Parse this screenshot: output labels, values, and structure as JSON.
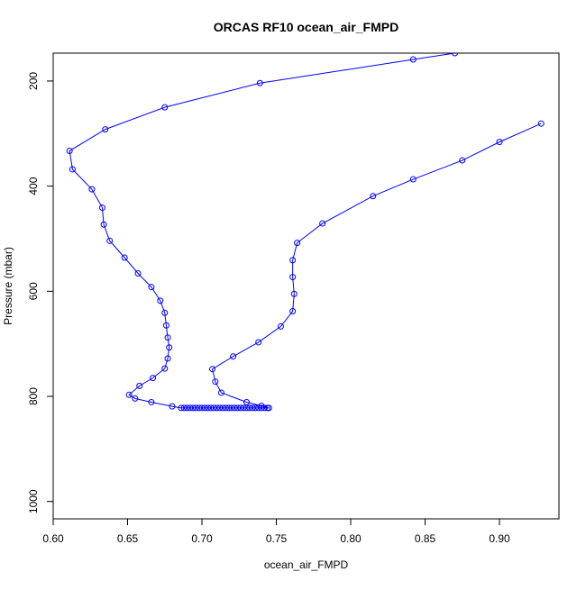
{
  "chart_data": {
    "type": "line",
    "title": "ORCAS RF10 ocean_air_FMPD",
    "xlabel": "ocean_air_FMPD",
    "ylabel": "Pressure (mbar)",
    "xlim": [
      0.6,
      0.94
    ],
    "ylim": [
      1033,
      147
    ],
    "y_reversed": true,
    "grid": false,
    "legend": "none",
    "x_ticks": [
      {
        "value": 0.6,
        "label": "0.60"
      },
      {
        "value": 0.65,
        "label": "0.65"
      },
      {
        "value": 0.7,
        "label": "0.70"
      },
      {
        "value": 0.75,
        "label": "0.75"
      },
      {
        "value": 0.8,
        "label": "0.80"
      },
      {
        "value": 0.85,
        "label": "0.85"
      },
      {
        "value": 0.9,
        "label": "0.90"
      }
    ],
    "y_ticks": [
      {
        "value": 200,
        "label": "200"
      },
      {
        "value": 400,
        "label": "400"
      },
      {
        "value": 600,
        "label": "600"
      },
      {
        "value": 800,
        "label": "800"
      },
      {
        "value": 1000,
        "label": "1000"
      }
    ],
    "series": [
      {
        "color": "#0000ff",
        "marker": "open-circle",
        "points": [
          [
            0.87,
            147
          ],
          [
            0.842,
            159
          ],
          [
            0.739,
            204
          ],
          [
            0.675,
            250
          ],
          [
            0.635,
            292
          ],
          [
            0.611,
            333
          ],
          [
            0.613,
            368
          ],
          [
            0.626,
            406
          ],
          [
            0.633,
            441
          ],
          [
            0.634,
            473
          ],
          [
            0.638,
            504
          ],
          [
            0.648,
            536
          ],
          [
            0.657,
            566
          ],
          [
            0.666,
            592
          ],
          [
            0.672,
            618
          ],
          [
            0.675,
            641
          ],
          [
            0.676,
            665
          ],
          [
            0.677,
            688
          ],
          [
            0.678,
            707
          ],
          [
            0.677,
            728
          ],
          [
            0.675,
            747
          ],
          [
            0.667,
            765
          ],
          [
            0.658,
            780
          ],
          [
            0.651,
            797
          ],
          [
            0.655,
            804
          ],
          [
            0.666,
            811
          ],
          [
            0.68,
            819
          ],
          [
            0.686,
            822
          ],
          [
            0.688,
            822
          ],
          [
            0.69,
            822
          ],
          [
            0.692,
            822
          ],
          [
            0.694,
            822
          ],
          [
            0.696,
            822
          ],
          [
            0.698,
            822
          ],
          [
            0.7,
            822
          ],
          [
            0.702,
            822
          ],
          [
            0.704,
            822
          ],
          [
            0.706,
            822
          ],
          [
            0.708,
            822
          ],
          [
            0.71,
            822
          ],
          [
            0.712,
            822
          ],
          [
            0.714,
            822
          ],
          [
            0.716,
            822
          ],
          [
            0.718,
            822
          ],
          [
            0.72,
            822
          ],
          [
            0.722,
            822
          ],
          [
            0.724,
            822
          ],
          [
            0.726,
            822
          ],
          [
            0.728,
            822
          ],
          [
            0.73,
            822
          ],
          [
            0.732,
            822
          ],
          [
            0.734,
            822
          ],
          [
            0.736,
            822
          ],
          [
            0.738,
            822
          ],
          [
            0.74,
            822
          ],
          [
            0.742,
            822
          ],
          [
            0.744,
            822
          ],
          [
            0.745,
            822
          ],
          [
            0.74,
            818
          ],
          [
            0.73,
            811
          ],
          [
            0.713,
            793
          ],
          [
            0.709,
            772
          ],
          [
            0.707,
            748
          ],
          [
            0.721,
            724
          ],
          [
            0.738,
            697
          ],
          [
            0.753,
            667
          ],
          [
            0.761,
            638
          ],
          [
            0.762,
            605
          ],
          [
            0.761,
            573
          ],
          [
            0.761,
            541
          ],
          [
            0.764,
            508
          ],
          [
            0.781,
            471
          ],
          [
            0.815,
            419
          ],
          [
            0.842,
            387
          ],
          [
            0.875,
            351
          ],
          [
            0.9,
            316
          ],
          [
            0.928,
            281
          ]
        ]
      }
    ]
  }
}
